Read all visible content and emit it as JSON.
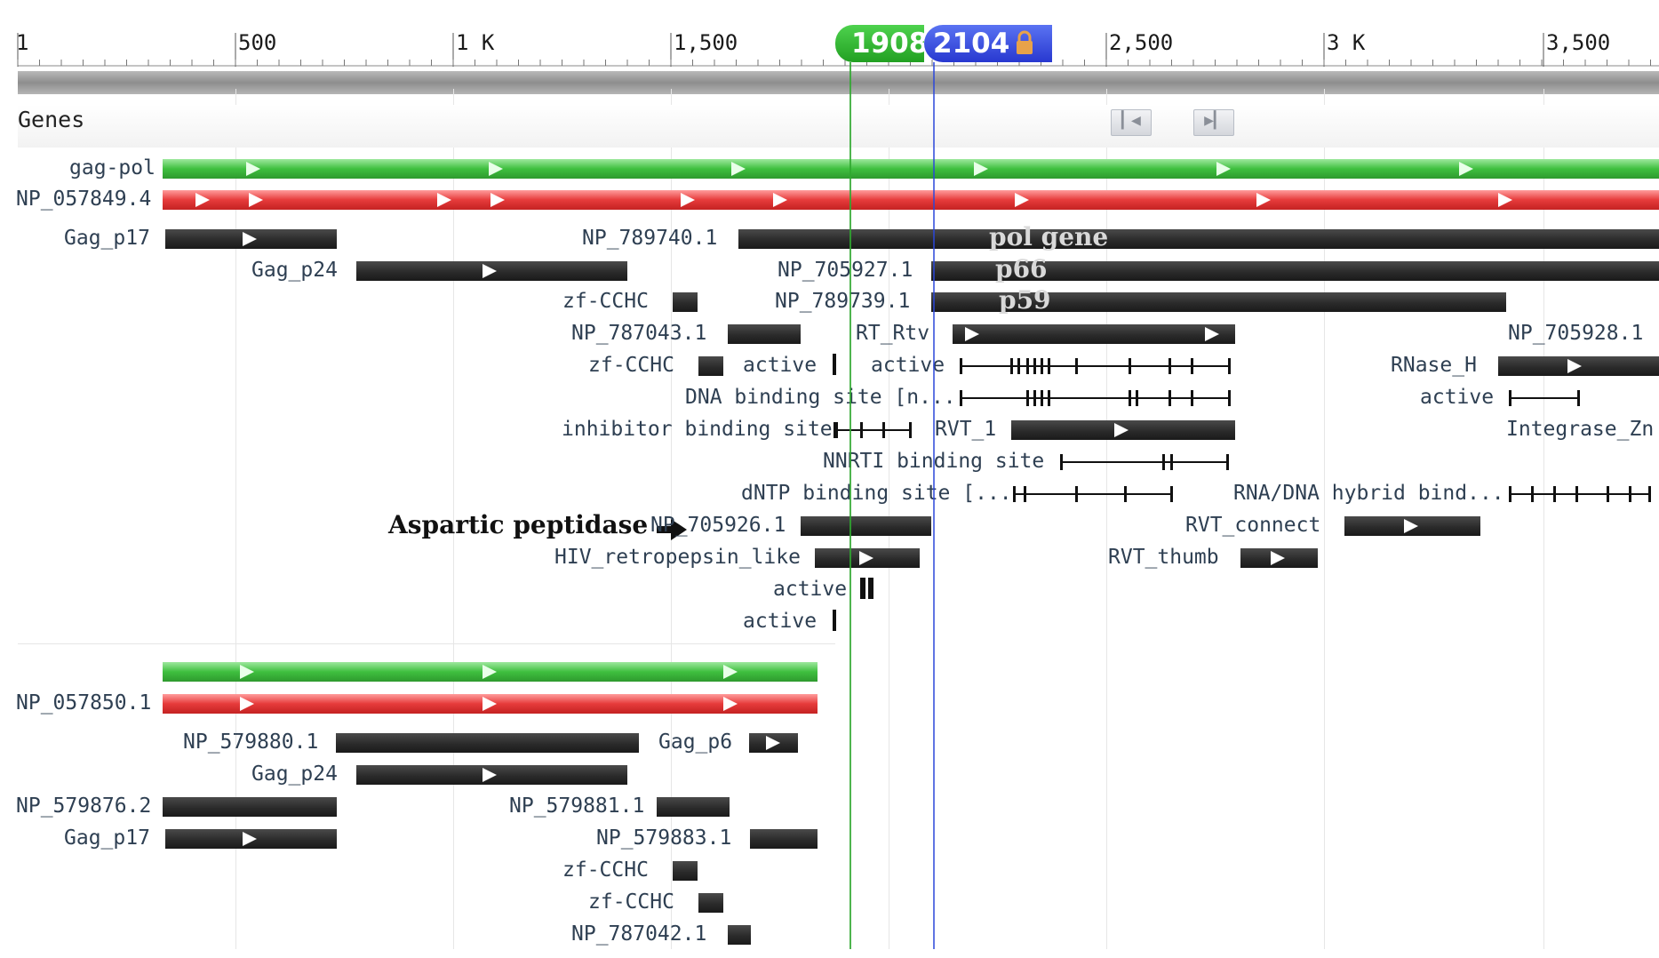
{
  "ruler": {
    "ticks": [
      "1",
      "500",
      "1 K",
      "1,500",
      "2,500",
      "3 K",
      "3,500"
    ],
    "marker_start": "1908",
    "marker_end": "2104",
    "lock_icon": "lock-icon"
  },
  "track": {
    "title": "Genes",
    "prev_icon": "first-page-icon",
    "next_icon": "last-page-icon"
  },
  "labels": {
    "gag_pol": "gag-pol",
    "np_057849": "NP_057849.4",
    "gag_p17": "Gag_p17",
    "np_789740": "NP_789740.1",
    "gag_p24": "Gag_p24",
    "np_705927": "NP_705927.1",
    "zf_cchc_1": "zf-CCHC",
    "np_789739": "NP_789739.1",
    "np_787043": "NP_787043.1",
    "rt_rtv": "RT_Rtv",
    "np_705928": "NP_705928.1",
    "zf_cchc_2": "zf-CCHC",
    "active_1": "active",
    "active_2": "active",
    "rnase_h": "RNase_H",
    "dna_binding": "DNA binding site [n...",
    "active_3": "active",
    "inhibitor_binding": "inhibitor binding site",
    "rvt_1": "RVT_1",
    "integrase": "Integrase_Zn",
    "nnrti": "NNRTI binding site",
    "dntp": "dNTP binding site [...",
    "rna_dna": "RNA/DNA hybrid bind...",
    "aspartic": "Aspartic peptidase",
    "np_705926": "NP_705926.1",
    "rvt_connect": "RVT_connect",
    "hiv_retro": "HIV_retropepsin_like",
    "rvt_thumb": "RVT_thumb",
    "active_4": "active",
    "active_5": "active",
    "np_057850": "NP_057850.1",
    "np_579880": "NP_579880.1",
    "gag_p6": "Gag_p6",
    "gag_p24_2": "Gag_p24",
    "np_579876": "NP_579876.2",
    "np_579881": "NP_579881.1",
    "gag_p17_2": "Gag_p17",
    "np_579883": "NP_579883.1",
    "zf_cchc_3": "zf-CCHC",
    "zf_cchc_4": "zf-CCHC",
    "np_787042": "NP_787042.1"
  },
  "overlays": {
    "pol_gene": "pol gene",
    "p66": "p66",
    "p59": "p59"
  },
  "colors": {
    "gene_green": "#3fbf3f",
    "transcript_red": "#e63b3b",
    "feature_dark": "#2b2b2b",
    "marker_green": "#2fa82f",
    "marker_blue": "#2b47d9",
    "label_text": "#2e3f52"
  }
}
